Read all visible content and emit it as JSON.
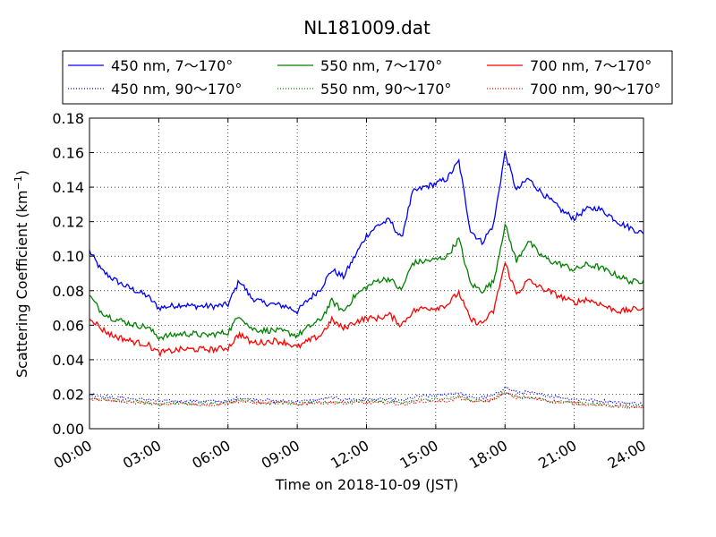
{
  "chart_data": {
    "type": "line",
    "title": "NL181009.dat",
    "xlabel": "Time on 2018-10-09 (JST)",
    "ylabel": "Scattering Coefficient (km",
    "ylabel_sup": "−1",
    "ylabel_close": ")",
    "xlim": [
      "00:00",
      "24:00"
    ],
    "ylim": [
      0.0,
      0.18
    ],
    "x_ticks": [
      "00:00",
      "03:00",
      "06:00",
      "09:00",
      "12:00",
      "15:00",
      "18:00",
      "21:00",
      "24:00"
    ],
    "y_ticks": [
      "0.00",
      "0.02",
      "0.04",
      "0.06",
      "0.08",
      "0.10",
      "0.12",
      "0.14",
      "0.16",
      "0.18"
    ],
    "grid": true,
    "legend_position": "top",
    "legend_columns": 3,
    "colors": {
      "450": "#0000ff",
      "550": "#008000",
      "700": "#ff0000"
    },
    "x": [
      "00:00",
      "00:30",
      "01:00",
      "01:30",
      "02:00",
      "02:30",
      "03:00",
      "03:30",
      "04:00",
      "04:30",
      "05:00",
      "05:30",
      "06:00",
      "06:30",
      "07:00",
      "07:30",
      "08:00",
      "08:30",
      "09:00",
      "09:30",
      "10:00",
      "10:30",
      "11:00",
      "11:30",
      "12:00",
      "12:30",
      "13:00",
      "13:30",
      "14:00",
      "14:30",
      "15:00",
      "15:30",
      "16:00",
      "16:30",
      "17:00",
      "17:30",
      "18:00",
      "18:30",
      "19:00",
      "19:30",
      "20:00",
      "20:30",
      "21:00",
      "21:30",
      "22:00",
      "22:30",
      "23:00",
      "23:30",
      "24:00"
    ],
    "series": [
      {
        "name": "450 nm, 7～170°",
        "color": "#0000ff",
        "style": "solid",
        "values": [
          0.103,
          0.092,
          0.087,
          0.083,
          0.08,
          0.077,
          0.07,
          0.071,
          0.072,
          0.071,
          0.071,
          0.071,
          0.072,
          0.086,
          0.076,
          0.073,
          0.072,
          0.071,
          0.068,
          0.075,
          0.081,
          0.092,
          0.088,
          0.1,
          0.112,
          0.118,
          0.121,
          0.11,
          0.137,
          0.14,
          0.142,
          0.145,
          0.155,
          0.115,
          0.108,
          0.118,
          0.16,
          0.138,
          0.145,
          0.138,
          0.132,
          0.126,
          0.122,
          0.127,
          0.128,
          0.124,
          0.119,
          0.116,
          0.113
        ]
      },
      {
        "name": "450 nm, 90～170°",
        "color": "#0000ff",
        "style": "dotted",
        "values": [
          0.02,
          0.019,
          0.018,
          0.018,
          0.017,
          0.017,
          0.016,
          0.016,
          0.016,
          0.016,
          0.016,
          0.016,
          0.016,
          0.018,
          0.017,
          0.017,
          0.016,
          0.016,
          0.016,
          0.016,
          0.017,
          0.018,
          0.017,
          0.017,
          0.017,
          0.017,
          0.017,
          0.016,
          0.018,
          0.019,
          0.019,
          0.02,
          0.021,
          0.018,
          0.018,
          0.019,
          0.024,
          0.021,
          0.021,
          0.02,
          0.019,
          0.018,
          0.017,
          0.017,
          0.016,
          0.016,
          0.015,
          0.015,
          0.014
        ]
      },
      {
        "name": "550 nm, 7～170°",
        "color": "#008000",
        "style": "solid",
        "values": [
          0.077,
          0.068,
          0.064,
          0.062,
          0.06,
          0.059,
          0.053,
          0.054,
          0.055,
          0.055,
          0.054,
          0.055,
          0.056,
          0.066,
          0.058,
          0.057,
          0.057,
          0.056,
          0.054,
          0.059,
          0.063,
          0.074,
          0.068,
          0.077,
          0.082,
          0.086,
          0.087,
          0.08,
          0.096,
          0.097,
          0.098,
          0.1,
          0.11,
          0.084,
          0.08,
          0.085,
          0.118,
          0.097,
          0.109,
          0.101,
          0.097,
          0.095,
          0.092,
          0.095,
          0.094,
          0.091,
          0.088,
          0.085,
          0.086
        ]
      },
      {
        "name": "550 nm, 90～170°",
        "color": "#008000",
        "style": "dotted",
        "values": [
          0.018,
          0.017,
          0.017,
          0.016,
          0.016,
          0.015,
          0.014,
          0.015,
          0.015,
          0.014,
          0.015,
          0.015,
          0.015,
          0.017,
          0.016,
          0.015,
          0.015,
          0.015,
          0.014,
          0.015,
          0.015,
          0.016,
          0.015,
          0.016,
          0.016,
          0.016,
          0.016,
          0.015,
          0.016,
          0.017,
          0.017,
          0.017,
          0.019,
          0.016,
          0.016,
          0.017,
          0.021,
          0.018,
          0.018,
          0.017,
          0.016,
          0.016,
          0.015,
          0.015,
          0.014,
          0.014,
          0.013,
          0.013,
          0.013
        ]
      },
      {
        "name": "700 nm, 7～170°",
        "color": "#ff0000",
        "style": "solid",
        "values": [
          0.065,
          0.058,
          0.054,
          0.052,
          0.05,
          0.049,
          0.044,
          0.045,
          0.046,
          0.046,
          0.046,
          0.046,
          0.047,
          0.055,
          0.05,
          0.05,
          0.051,
          0.05,
          0.047,
          0.051,
          0.054,
          0.063,
          0.058,
          0.062,
          0.064,
          0.064,
          0.066,
          0.06,
          0.068,
          0.07,
          0.07,
          0.072,
          0.079,
          0.063,
          0.061,
          0.068,
          0.096,
          0.078,
          0.086,
          0.082,
          0.079,
          0.076,
          0.073,
          0.075,
          0.073,
          0.07,
          0.068,
          0.069,
          0.07
        ]
      },
      {
        "name": "700 nm, 90～170°",
        "color": "#ff0000",
        "style": "dotted",
        "values": [
          0.017,
          0.017,
          0.016,
          0.016,
          0.015,
          0.015,
          0.014,
          0.014,
          0.015,
          0.014,
          0.014,
          0.014,
          0.015,
          0.016,
          0.015,
          0.015,
          0.015,
          0.015,
          0.014,
          0.015,
          0.015,
          0.015,
          0.015,
          0.015,
          0.015,
          0.015,
          0.015,
          0.014,
          0.015,
          0.016,
          0.016,
          0.016,
          0.018,
          0.016,
          0.016,
          0.017,
          0.021,
          0.018,
          0.018,
          0.017,
          0.016,
          0.015,
          0.015,
          0.014,
          0.014,
          0.013,
          0.013,
          0.012,
          0.012
        ]
      }
    ]
  }
}
